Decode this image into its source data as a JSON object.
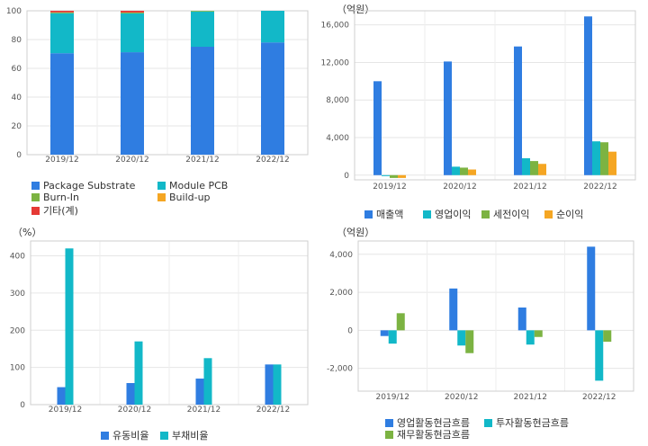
{
  "chart_data": [
    {
      "type": "bar",
      "stacked": true,
      "unit": "",
      "categories": [
        "2019/12",
        "2020/12",
        "2021/12",
        "2022/12"
      ],
      "ylim": [
        0,
        100
      ],
      "yticks": [
        0,
        20,
        40,
        60,
        80,
        100
      ],
      "ytick_labels": [
        "0",
        "20",
        "40",
        "60",
        "80",
        "100"
      ],
      "grid": true,
      "series": [
        {
          "name": "Package Substrate",
          "color": "#2f7de1",
          "values": [
            70.5,
            71.2,
            75.0,
            78.0
          ]
        },
        {
          "name": "Module PCB",
          "color": "#12b8c8",
          "values": [
            27.8,
            27.0,
            24.5,
            22.0
          ]
        },
        {
          "name": "Burn-In",
          "color": "#7cb342",
          "values": [
            0.6,
            0.6,
            0.5,
            0
          ]
        },
        {
          "name": "Build-up",
          "color": "#f5a623",
          "values": [
            0,
            0,
            0,
            0
          ]
        },
        {
          "name": "기타(계)",
          "color": "#e53935",
          "values": [
            1.1,
            1.2,
            0,
            0
          ]
        }
      ],
      "legend_position": "bottom"
    },
    {
      "type": "bar",
      "stacked": false,
      "unit": "（억원）",
      "categories": [
        "2019/12",
        "2020/12",
        "2021/12",
        "2022/12"
      ],
      "ylim": [
        -500,
        17500
      ],
      "yticks": [
        0,
        4000,
        8000,
        12000,
        16000
      ],
      "ytick_labels": [
        "0",
        "4,000",
        "8,000",
        "12,000",
        "16,000"
      ],
      "grid": true,
      "series": [
        {
          "name": "매출액",
          "color": "#2f7de1",
          "values": [
            10000,
            12100,
            13700,
            16900
          ]
        },
        {
          "name": "영업이익",
          "color": "#12b8c8",
          "values": [
            -100,
            900,
            1800,
            3600
          ]
        },
        {
          "name": "세전이익",
          "color": "#7cb342",
          "values": [
            -300,
            800,
            1500,
            3500
          ]
        },
        {
          "name": "순이익",
          "color": "#f5a623",
          "values": [
            -300,
            600,
            1200,
            2500
          ]
        }
      ],
      "legend_position": "bottom"
    },
    {
      "type": "bar",
      "stacked": false,
      "unit": "（%）",
      "categories": [
        "2019/12",
        "2020/12",
        "2021/12",
        "2022/12"
      ],
      "ylim": [
        0,
        440
      ],
      "yticks": [
        0,
        100,
        200,
        300,
        400
      ],
      "ytick_labels": [
        "0",
        "100",
        "200",
        "300",
        "400"
      ],
      "grid": true,
      "series": [
        {
          "name": "유동비율",
          "color": "#2f7de1",
          "values": [
            47,
            58,
            70,
            108
          ]
        },
        {
          "name": "부채비율",
          "color": "#12b8c8",
          "values": [
            420,
            170,
            125,
            108
          ]
        }
      ],
      "legend_position": "bottom"
    },
    {
      "type": "bar",
      "stacked": false,
      "unit": "（억원）",
      "categories": [
        "2019/12",
        "2020/12",
        "2021/12",
        "2022/12"
      ],
      "ylim": [
        -3200,
        4700
      ],
      "yticks": [
        -2000,
        0,
        2000,
        4000
      ],
      "ytick_labels": [
        "-2,000",
        "0",
        "2,000",
        "4,000"
      ],
      "grid": true,
      "series": [
        {
          "name": "영업활동현금흐름",
          "color": "#2f7de1",
          "values": [
            -300,
            2200,
            1200,
            4400
          ]
        },
        {
          "name": "투자활동현금흐름",
          "color": "#12b8c8",
          "values": [
            -700,
            -800,
            -750,
            -2650
          ]
        },
        {
          "name": "재무활동현금흐름",
          "color": "#7cb342",
          "values": [
            900,
            -1200,
            -350,
            -600
          ]
        }
      ],
      "legend_position": "bottom"
    }
  ]
}
